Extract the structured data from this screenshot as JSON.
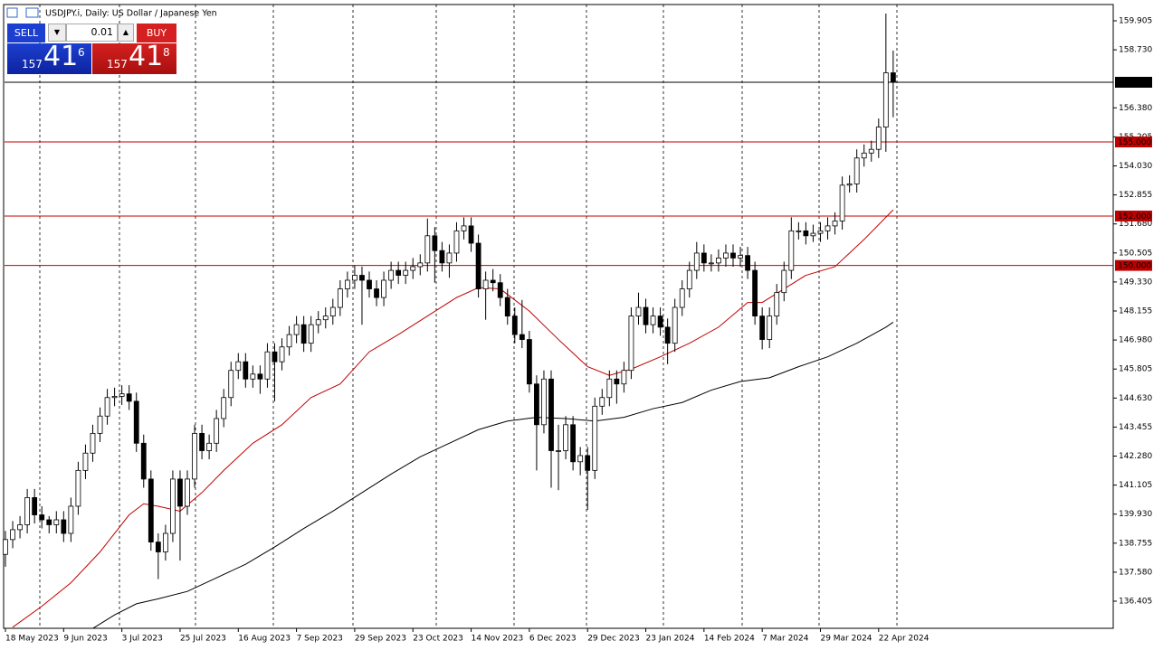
{
  "chart_data": {
    "type": "candlestick",
    "title": "USDJPY.i, Daily:  US Dollar / Japanese Yen",
    "trade_panel": {
      "sell": "SELL",
      "buy": "BUY",
      "volume": "0.01",
      "sell_price": {
        "big": "157",
        "main": "41",
        "small": "6"
      },
      "buy_price": {
        "big": "157",
        "main": "41",
        "small": "8"
      }
    },
    "ylim": [
      135.307,
      160.564
    ],
    "yticks": [
      {
        "value": 159.905,
        "label": "159.905"
      },
      {
        "value": 158.73,
        "label": "158.730"
      },
      {
        "value": 156.38,
        "label": "156.380"
      },
      {
        "value": 155.205,
        "label": "155.205"
      },
      {
        "value": 154.03,
        "label": "154.030"
      },
      {
        "value": 152.855,
        "label": "152.855"
      },
      {
        "value": 151.68,
        "label": "151.680"
      },
      {
        "value": 150.505,
        "label": "150.505"
      },
      {
        "value": 149.33,
        "label": "149.330"
      },
      {
        "value": 148.155,
        "label": "148.155"
      },
      {
        "value": 146.98,
        "label": "146.980"
      },
      {
        "value": 145.805,
        "label": "145.805"
      },
      {
        "value": 144.63,
        "label": "144.630"
      },
      {
        "value": 143.455,
        "label": "143.455"
      },
      {
        "value": 142.28,
        "label": "142.280"
      },
      {
        "value": 141.105,
        "label": "141.105"
      },
      {
        "value": 139.93,
        "label": "139.930"
      },
      {
        "value": 138.755,
        "label": "138.755"
      },
      {
        "value": 137.58,
        "label": "137.580"
      },
      {
        "value": 136.405,
        "label": "136.405"
      }
    ],
    "categories": [
      "18 May 2023",
      null,
      null,
      null,
      null,
      null,
      null,
      null,
      "9 Jun 2023",
      null,
      null,
      null,
      null,
      null,
      null,
      null,
      "3 Jul 2023",
      null,
      null,
      null,
      null,
      null,
      null,
      null,
      "25 Jul 2023",
      null,
      null,
      null,
      null,
      null,
      null,
      null,
      "16 Aug 2023",
      null,
      null,
      null,
      null,
      null,
      null,
      null,
      "7 Sep 2023",
      null,
      null,
      null,
      null,
      null,
      null,
      null,
      "29 Sep 2023",
      null,
      null,
      null,
      null,
      null,
      null,
      null,
      "23 Oct 2023",
      null,
      null,
      null,
      null,
      null,
      null,
      null,
      "14 Nov 2023",
      null,
      null,
      null,
      null,
      null,
      null,
      null,
      "6 Dec 2023",
      null,
      null,
      null,
      null,
      null,
      null,
      null,
      "29 Dec 2023",
      null,
      null,
      null,
      null,
      null,
      null,
      null,
      "23 Jan 2024",
      null,
      null,
      null,
      null,
      null,
      null,
      null,
      "14 Feb 2024",
      null,
      null,
      null,
      null,
      null,
      null,
      null,
      "7 Mar 2024",
      null,
      null,
      null,
      null,
      null,
      null,
      null,
      "29 Mar 2024",
      null,
      null,
      null,
      null,
      null,
      null,
      null,
      "22 Apr 2024",
      null,
      null
    ],
    "candles": [
      [
        138.3,
        139.25,
        137.8,
        138.9
      ],
      [
        138.9,
        139.65,
        138.55,
        139.3
      ],
      [
        139.3,
        139.85,
        138.95,
        139.5
      ],
      [
        139.5,
        140.95,
        139.15,
        140.6
      ],
      [
        140.6,
        140.95,
        139.55,
        139.9
      ],
      [
        139.9,
        140.25,
        139.35,
        139.7
      ],
      [
        139.7,
        139.85,
        139.15,
        139.5
      ],
      [
        139.5,
        140.05,
        139.15,
        139.7
      ],
      [
        139.7,
        140.05,
        138.8,
        139.15
      ],
      [
        139.15,
        140.6,
        138.8,
        140.25
      ],
      [
        140.25,
        142.05,
        139.9,
        141.7
      ],
      [
        141.7,
        142.75,
        141.35,
        142.4
      ],
      [
        142.4,
        143.55,
        142.05,
        143.2
      ],
      [
        143.2,
        144.25,
        142.85,
        143.9
      ],
      [
        143.9,
        145.0,
        143.55,
        144.65
      ],
      [
        144.65,
        145.05,
        144.3,
        144.7
      ],
      [
        144.7,
        145.15,
        144.35,
        144.8
      ],
      [
        144.8,
        145.15,
        144.15,
        144.5
      ],
      [
        144.5,
        144.85,
        142.45,
        142.8
      ],
      [
        142.8,
        143.15,
        141.0,
        141.35
      ],
      [
        141.35,
        141.7,
        138.45,
        138.8
      ],
      [
        138.8,
        139.15,
        137.3,
        138.4
      ],
      [
        138.4,
        139.5,
        138.05,
        139.15
      ],
      [
        139.15,
        141.7,
        138.8,
        141.35
      ],
      [
        141.35,
        141.7,
        138.05,
        140.25
      ],
      [
        140.25,
        141.7,
        139.9,
        141.35
      ],
      [
        141.35,
        143.55,
        141.0,
        143.2
      ],
      [
        143.2,
        143.55,
        142.15,
        142.5
      ],
      [
        142.5,
        143.15,
        142.15,
        142.8
      ],
      [
        142.8,
        144.15,
        142.45,
        143.8
      ],
      [
        143.8,
        145.0,
        143.45,
        144.65
      ],
      [
        144.65,
        146.1,
        144.3,
        145.75
      ],
      [
        145.75,
        146.45,
        145.4,
        146.1
      ],
      [
        146.1,
        146.45,
        145.05,
        145.4
      ],
      [
        145.4,
        145.95,
        145.05,
        145.6
      ],
      [
        145.6,
        145.95,
        144.8,
        145.4
      ],
      [
        145.4,
        146.85,
        145.05,
        146.5
      ],
      [
        146.5,
        146.85,
        144.5,
        146.1
      ],
      [
        146.1,
        147.05,
        145.75,
        146.7
      ],
      [
        146.7,
        147.55,
        146.35,
        147.2
      ],
      [
        147.2,
        147.95,
        146.85,
        147.6
      ],
      [
        147.6,
        147.95,
        146.5,
        146.85
      ],
      [
        146.85,
        147.95,
        146.5,
        147.6
      ],
      [
        147.6,
        148.15,
        147.25,
        147.8
      ],
      [
        147.8,
        148.3,
        147.45,
        147.95
      ],
      [
        147.95,
        148.65,
        147.6,
        148.3
      ],
      [
        148.3,
        149.4,
        147.95,
        149.05
      ],
      [
        149.05,
        149.75,
        148.7,
        149.4
      ],
      [
        149.4,
        150.0,
        149.05,
        149.6
      ],
      [
        149.6,
        149.95,
        147.6,
        149.4
      ],
      [
        149.4,
        149.75,
        148.7,
        149.05
      ],
      [
        149.05,
        149.4,
        148.35,
        148.7
      ],
      [
        148.7,
        149.75,
        148.35,
        149.4
      ],
      [
        149.4,
        150.15,
        149.05,
        149.8
      ],
      [
        149.8,
        150.15,
        149.25,
        149.6
      ],
      [
        149.6,
        150.15,
        149.25,
        149.8
      ],
      [
        149.8,
        150.3,
        149.45,
        149.95
      ],
      [
        149.95,
        150.45,
        149.6,
        150.1
      ],
      [
        150.1,
        151.9,
        149.75,
        151.2
      ],
      [
        151.2,
        151.55,
        149.3,
        150.6
      ],
      [
        150.6,
        150.95,
        149.75,
        150.1
      ],
      [
        150.1,
        150.85,
        149.5,
        150.5
      ],
      [
        150.5,
        151.75,
        150.15,
        151.4
      ],
      [
        151.4,
        151.95,
        151.05,
        151.6
      ],
      [
        151.6,
        151.95,
        150.55,
        150.9
      ],
      [
        150.9,
        151.25,
        148.7,
        149.05
      ],
      [
        149.05,
        149.75,
        147.8,
        149.4
      ],
      [
        149.4,
        149.85,
        148.95,
        149.3
      ],
      [
        149.3,
        149.65,
        148.35,
        148.7
      ],
      [
        148.7,
        149.05,
        147.6,
        147.95
      ],
      [
        147.95,
        148.3,
        146.85,
        147.2
      ],
      [
        147.2,
        148.6,
        146.65,
        147.0
      ],
      [
        147.0,
        147.35,
        144.85,
        145.2
      ],
      [
        145.2,
        145.55,
        141.7,
        143.55
      ],
      [
        143.55,
        145.75,
        143.2,
        145.4
      ],
      [
        145.4,
        145.75,
        141.0,
        142.5
      ],
      [
        142.5,
        143.55,
        140.9,
        142.5
      ],
      [
        142.5,
        143.9,
        142.15,
        143.55
      ],
      [
        143.55,
        143.9,
        141.7,
        142.05
      ],
      [
        142.05,
        142.65,
        141.5,
        142.3
      ],
      [
        142.3,
        142.65,
        140.1,
        141.7
      ],
      [
        141.7,
        144.65,
        141.35,
        144.3
      ],
      [
        144.3,
        145.0,
        143.95,
        144.65
      ],
      [
        144.65,
        145.75,
        144.3,
        145.4
      ],
      [
        145.4,
        145.75,
        144.4,
        145.2
      ],
      [
        145.2,
        146.1,
        144.85,
        145.75
      ],
      [
        145.75,
        148.3,
        145.4,
        147.95
      ],
      [
        147.95,
        148.9,
        147.6,
        148.3
      ],
      [
        148.3,
        148.65,
        147.25,
        147.6
      ],
      [
        147.6,
        148.3,
        147.25,
        147.95
      ],
      [
        147.95,
        148.3,
        147.15,
        147.5
      ],
      [
        147.5,
        147.85,
        146.0,
        146.85
      ],
      [
        146.85,
        148.65,
        146.5,
        148.3
      ],
      [
        148.3,
        149.4,
        147.95,
        149.05
      ],
      [
        149.05,
        150.15,
        148.7,
        149.8
      ],
      [
        149.8,
        150.95,
        149.45,
        150.5
      ],
      [
        150.5,
        150.85,
        149.75,
        150.1
      ],
      [
        150.1,
        150.45,
        149.75,
        150.1
      ],
      [
        150.1,
        150.65,
        149.75,
        150.3
      ],
      [
        150.3,
        150.85,
        149.95,
        150.5
      ],
      [
        150.5,
        150.85,
        149.95,
        150.3
      ],
      [
        150.3,
        150.75,
        149.95,
        150.4
      ],
      [
        150.4,
        150.75,
        149.45,
        149.8
      ],
      [
        149.8,
        150.15,
        147.6,
        147.95
      ],
      [
        147.95,
        148.3,
        146.6,
        147.0
      ],
      [
        147.0,
        148.3,
        146.65,
        147.95
      ],
      [
        147.95,
        149.25,
        147.6,
        148.9
      ],
      [
        148.9,
        150.15,
        148.55,
        149.8
      ],
      [
        149.8,
        151.95,
        149.45,
        151.4
      ],
      [
        151.4,
        151.75,
        151.05,
        151.4
      ],
      [
        151.4,
        151.75,
        150.85,
        151.2
      ],
      [
        151.2,
        151.65,
        150.95,
        151.3
      ],
      [
        151.3,
        151.75,
        150.95,
        151.4
      ],
      [
        151.4,
        151.95,
        151.05,
        151.6
      ],
      [
        151.6,
        152.15,
        151.25,
        151.8
      ],
      [
        151.8,
        153.6,
        151.45,
        153.25
      ],
      [
        153.25,
        153.65,
        152.95,
        153.3
      ],
      [
        153.3,
        154.7,
        152.95,
        154.35
      ],
      [
        154.35,
        154.9,
        154.0,
        154.55
      ],
      [
        154.55,
        155.05,
        154.2,
        154.7
      ],
      [
        154.7,
        155.95,
        154.35,
        155.6
      ],
      [
        155.6,
        160.2,
        154.6,
        157.8
      ],
      [
        157.8,
        158.7,
        156.0,
        157.416
      ]
    ],
    "lines": [
      {
        "color": "#c00000",
        "x": [
          1,
          5,
          9,
          13,
          17,
          19,
          21,
          24,
          27,
          30,
          34,
          38,
          42,
          46,
          50,
          54,
          58,
          62,
          65,
          68,
          72,
          76,
          80,
          83,
          86,
          90,
          94,
          98,
          102,
          104,
          107,
          110,
          114,
          118,
          122
        ],
        "values": [
          135.35,
          136.2,
          137.15,
          138.4,
          139.9,
          140.35,
          140.25,
          140.05,
          140.8,
          141.7,
          142.8,
          143.55,
          144.65,
          145.2,
          146.5,
          147.2,
          147.95,
          148.7,
          149.1,
          149.05,
          148.15,
          147.0,
          145.9,
          145.55,
          145.8,
          146.3,
          146.85,
          147.5,
          148.5,
          148.5,
          149.05,
          149.6,
          149.95,
          151.05,
          152.25
        ]
      },
      {
        "color": "#000000",
        "x": [
          12,
          15,
          18,
          21,
          25,
          29,
          33,
          37,
          41,
          45,
          49,
          53,
          57,
          61,
          65,
          69,
          73,
          77,
          81,
          85,
          89,
          93,
          97,
          101,
          105,
          109,
          113,
          117,
          121,
          122
        ],
        "values": [
          135.3,
          135.85,
          136.3,
          136.5,
          136.8,
          137.35,
          137.9,
          138.6,
          139.35,
          140.05,
          140.8,
          141.55,
          142.25,
          142.8,
          143.35,
          143.7,
          143.85,
          143.8,
          143.7,
          143.85,
          144.2,
          144.45,
          144.95,
          145.3,
          145.45,
          145.9,
          146.3,
          146.85,
          147.5,
          147.7
        ]
      }
    ],
    "levels": [
      {
        "value": 155.0,
        "label": "155.000",
        "color": "#c00000"
      },
      {
        "value": 152.0,
        "label": "152.000",
        "color": "#c00000"
      },
      {
        "value": 150.0,
        "label": "150.000",
        "color": "#c00000"
      }
    ],
    "current_price": 157.416
  }
}
